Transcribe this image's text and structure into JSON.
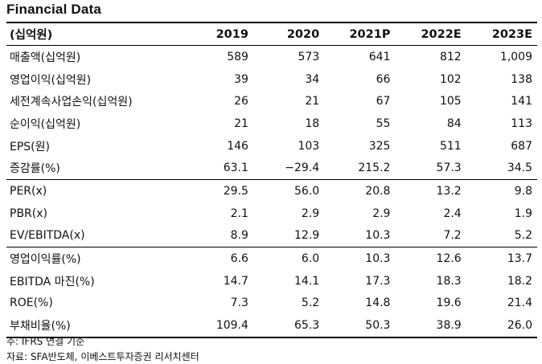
{
  "title": "Financial Data",
  "table": {
    "header": [
      "(십억원)",
      "2019",
      "2020",
      "2021P",
      "2022E",
      "2023E"
    ],
    "rows": [
      {
        "label": "매출액(십억원)",
        "values": [
          "589",
          "573",
          "641",
          "812",
          "1,009"
        ]
      },
      {
        "label": "영업이익(십억원)",
        "values": [
          "39",
          "34",
          "66",
          "102",
          "138"
        ]
      },
      {
        "label": "세전계속사업손익(십억원)",
        "values": [
          "26",
          "21",
          "67",
          "105",
          "141"
        ]
      },
      {
        "label": "순이익(십억원)",
        "values": [
          "21",
          "18",
          "55",
          "84",
          "113"
        ]
      },
      {
        "label": "EPS(원)",
        "values": [
          "146",
          "103",
          "325",
          "511",
          "687"
        ]
      },
      {
        "label": "증감률(%)",
        "values": [
          "63.1",
          "−29.4",
          "215.2",
          "57.3",
          "34.5"
        ]
      },
      {
        "label": "PER(x)",
        "values": [
          "29.5",
          "56.0",
          "20.8",
          "13.2",
          "9.8"
        ]
      },
      {
        "label": "PBR(x)",
        "values": [
          "2.1",
          "2.9",
          "2.9",
          "2.4",
          "1.9"
        ]
      },
      {
        "label": "EV/EBITDA(x)",
        "values": [
          "8.9",
          "12.9",
          "10.3",
          "7.2",
          "5.2"
        ]
      },
      {
        "label": "영업이익률(%)",
        "values": [
          "6.6",
          "6.0",
          "10.3",
          "12.6",
          "13.7"
        ]
      },
      {
        "label": "EBITDA 마진(%)",
        "values": [
          "14.7",
          "14.1",
          "17.3",
          "18.3",
          "18.2"
        ]
      },
      {
        "label": "ROE(%)",
        "values": [
          "7.3",
          "5.2",
          "14.8",
          "19.6",
          "21.4"
        ]
      },
      {
        "label": "부채비율(%)",
        "values": [
          "109.4",
          "65.3",
          "50.3",
          "38.9",
          "26.0"
        ]
      }
    ]
  },
  "notes": {
    "basis": "주: IFRS 연결 기준",
    "source": "자료: SFA반도체, 이베스트투자증권 리서치센터"
  }
}
